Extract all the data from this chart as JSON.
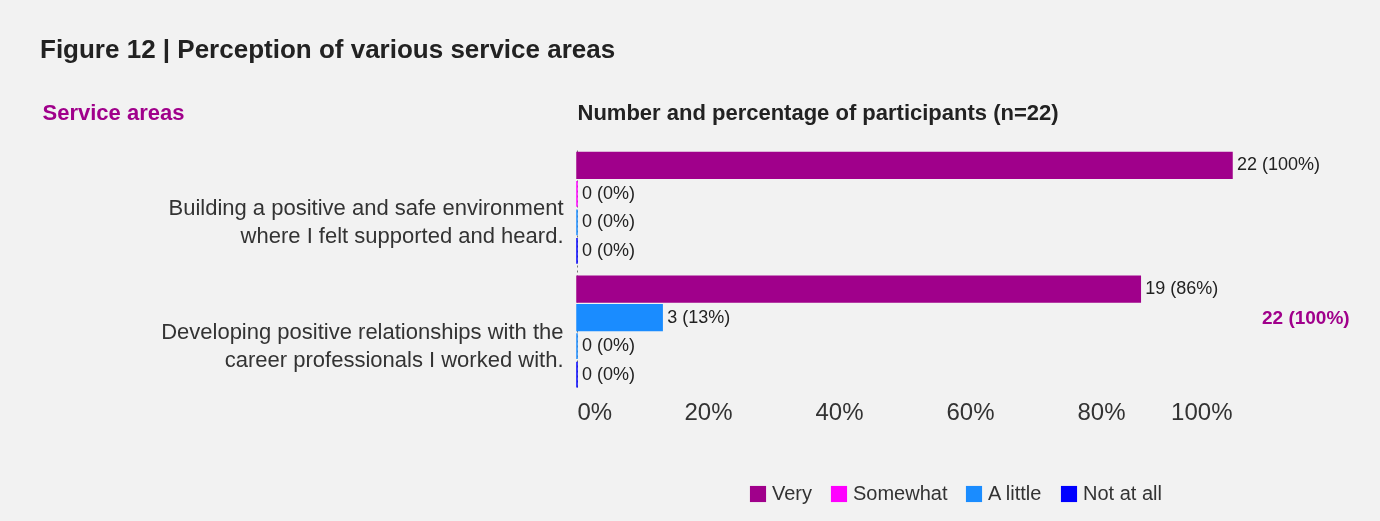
{
  "chart_data": {
    "type": "bar",
    "orientation": "horizontal",
    "title": "Figure 12  |  Perception of various service areas",
    "ylabel": "Service areas",
    "xlabel": "Number and percentage of participants (n=22)",
    "categories": [
      "Building a positive and safe environment\nwhere I felt supported and heard.",
      "Developing positive relationships with the\ncareer professionals I worked with."
    ],
    "series": [
      {
        "name": "Very",
        "color": "#a0008b",
        "values": [
          100,
          86
        ],
        "value_labels": [
          "22 (100%)",
          "19 (86%)"
        ]
      },
      {
        "name": "Somewhat",
        "color": "#ff00ff",
        "colors": [
          "#ff00ff",
          "#1a8cff"
        ],
        "values": [
          0,
          13
        ],
        "value_labels": [
          "0 (0%)",
          "3 (13%)"
        ]
      },
      {
        "name": "A little",
        "color": "#1a8cff",
        "values": [
          0,
          0
        ],
        "value_labels": [
          "0 (0%)",
          "0 (0%)"
        ]
      },
      {
        "name": "Not at all",
        "color": "#0000ff",
        "values": [
          0,
          0
        ],
        "value_labels": [
          "0 (0%)",
          "0 (0%)"
        ]
      }
    ],
    "xlim": [
      0,
      100
    ],
    "xticks": [
      {
        "value": 0,
        "label": "0%"
      },
      {
        "value": 20,
        "label": "20%"
      },
      {
        "value": 40,
        "label": "40%"
      },
      {
        "value": 60,
        "label": "60%"
      },
      {
        "value": 80,
        "label": "80%"
      },
      {
        "value": 100,
        "label": "100%"
      }
    ],
    "annotations": [
      "22 (100%)"
    ],
    "legend": "bottom right",
    "grid": false
  }
}
